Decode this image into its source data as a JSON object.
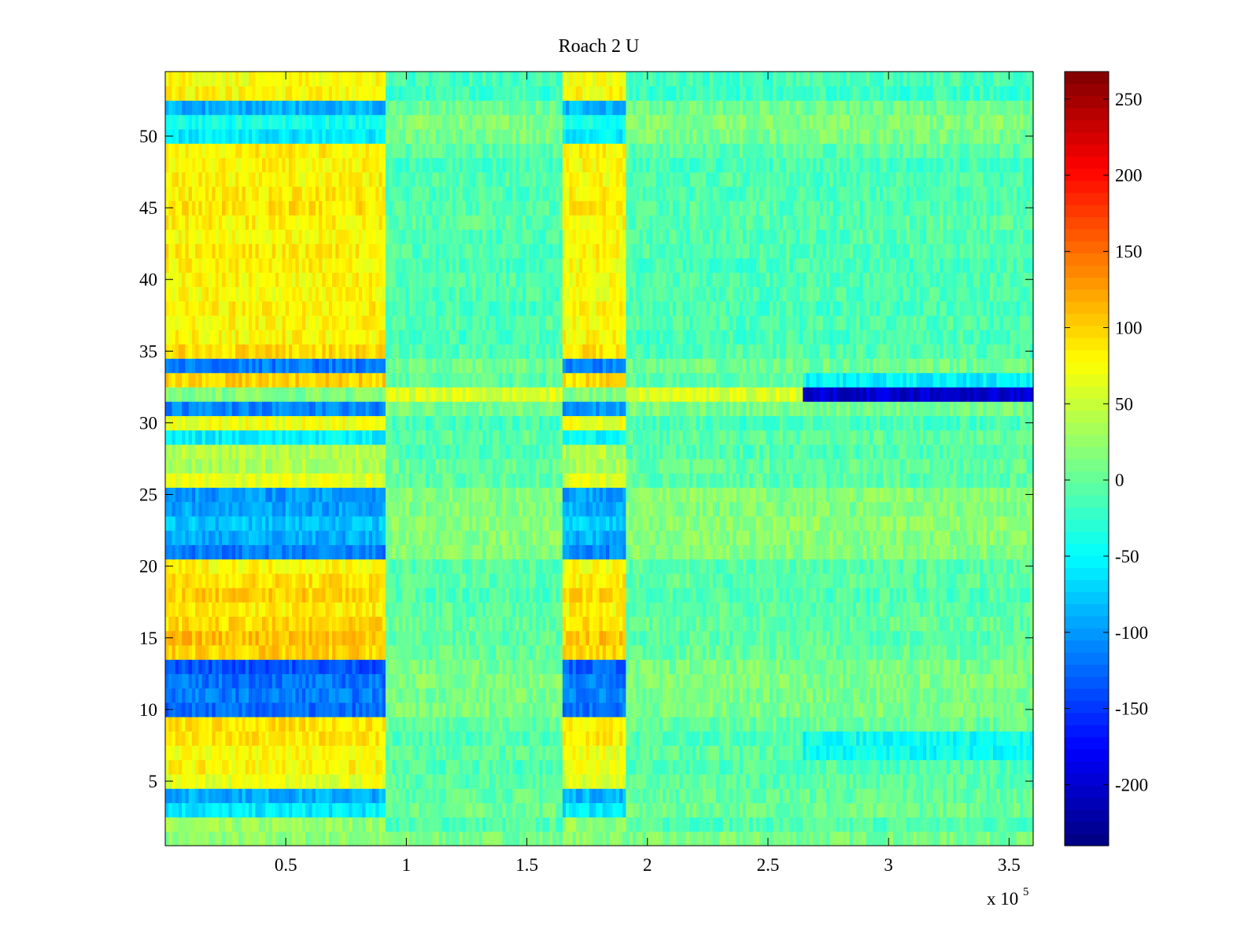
{
  "chart_data": {
    "type": "heatmap",
    "title": "Roach 2 U",
    "xlabel": "",
    "ylabel": "",
    "x_multiplier": "x 10",
    "x_multiplier_exponent": "5",
    "xlim": [
      0,
      3.6
    ],
    "ylim": [
      0.5,
      54.5
    ],
    "x_ticks": [
      0.5,
      1,
      1.5,
      2,
      2.5,
      3,
      3.5
    ],
    "x_tick_labels": [
      "0.5",
      "1",
      "1.5",
      "2",
      "2.5",
      "3",
      "3.5"
    ],
    "y_ticks": [
      5,
      10,
      15,
      20,
      25,
      30,
      35,
      40,
      45,
      50
    ],
    "y_tick_labels": [
      "5",
      "10",
      "15",
      "20",
      "25",
      "30",
      "35",
      "40",
      "45",
      "50"
    ],
    "colormap": "jet",
    "colorbar": {
      "clim": [
        -240,
        268
      ],
      "ticks": [
        250,
        200,
        150,
        100,
        50,
        0,
        -50,
        -100,
        -150,
        -200
      ],
      "tick_labels": [
        "250",
        "200",
        "150",
        "100",
        "50",
        "0",
        "-50",
        "-100",
        "-150",
        "-200"
      ]
    },
    "rows": 54,
    "segments_x": [
      0,
      0.91,
      1.65,
      1.91,
      2.64,
      3.6
    ],
    "segment_values": {
      "active": [
        [
          1,
          20
        ],
        [
          2,
          25
        ],
        [
          3,
          -60
        ],
        [
          4,
          -90
        ],
        [
          5,
          65
        ],
        [
          6,
          80
        ],
        [
          7,
          75
        ],
        [
          8,
          88
        ],
        [
          9,
          90
        ],
        [
          10,
          -125
        ],
        [
          11,
          -115
        ],
        [
          12,
          -120
        ],
        [
          13,
          -135
        ],
        [
          14,
          100
        ],
        [
          15,
          110
        ],
        [
          16,
          95
        ],
        [
          17,
          85
        ],
        [
          18,
          100
        ],
        [
          19,
          92
        ],
        [
          20,
          80
        ],
        [
          21,
          -115
        ],
        [
          22,
          -90
        ],
        [
          23,
          -80
        ],
        [
          24,
          -95
        ],
        [
          25,
          -100
        ],
        [
          26,
          65
        ],
        [
          27,
          35
        ],
        [
          28,
          40
        ],
        [
          29,
          -55
        ],
        [
          30,
          70
        ],
        [
          31,
          -110
        ],
        [
          32,
          15
        ],
        [
          33,
          100
        ],
        [
          34,
          -115
        ],
        [
          35,
          95
        ],
        [
          36,
          80
        ],
        [
          37,
          80
        ],
        [
          38,
          82
        ],
        [
          39,
          78
        ],
        [
          40,
          80
        ],
        [
          41,
          82
        ],
        [
          42,
          85
        ],
        [
          43,
          80
        ],
        [
          44,
          82
        ],
        [
          45,
          90
        ],
        [
          46,
          85
        ],
        [
          47,
          80
        ],
        [
          48,
          82
        ],
        [
          49,
          84
        ],
        [
          50,
          -60
        ],
        [
          51,
          -40
        ],
        [
          52,
          -90
        ],
        [
          53,
          80
        ],
        [
          54,
          75
        ]
      ],
      "quiet_mean": [
        [
          1,
          10
        ],
        [
          2,
          -10
        ],
        [
          3,
          5
        ],
        [
          4,
          0
        ],
        [
          5,
          -5
        ],
        [
          6,
          -10
        ],
        [
          7,
          -5
        ],
        [
          8,
          -10
        ],
        [
          9,
          0
        ],
        [
          10,
          12
        ],
        [
          11,
          10
        ],
        [
          12,
          15
        ],
        [
          13,
          10
        ],
        [
          14,
          0
        ],
        [
          15,
          -5
        ],
        [
          16,
          0
        ],
        [
          17,
          -5
        ],
        [
          18,
          -10
        ],
        [
          19,
          -5
        ],
        [
          20,
          -8
        ],
        [
          21,
          15
        ],
        [
          22,
          18
        ],
        [
          23,
          20
        ],
        [
          24,
          15
        ],
        [
          25,
          18
        ],
        [
          26,
          -5
        ],
        [
          27,
          0
        ],
        [
          28,
          -10
        ],
        [
          29,
          -5
        ],
        [
          30,
          -15
        ],
        [
          31,
          10
        ],
        [
          32,
          60
        ],
        [
          33,
          -5
        ],
        [
          34,
          5
        ],
        [
          35,
          -10
        ],
        [
          36,
          -15
        ],
        [
          37,
          -10
        ],
        [
          38,
          -15
        ],
        [
          39,
          -10
        ],
        [
          40,
          -10
        ],
        [
          41,
          -15
        ],
        [
          42,
          -10
        ],
        [
          43,
          -10
        ],
        [
          44,
          -5
        ],
        [
          45,
          -10
        ],
        [
          46,
          -12
        ],
        [
          47,
          -10
        ],
        [
          48,
          -15
        ],
        [
          49,
          -5
        ],
        [
          50,
          10
        ],
        [
          51,
          15
        ],
        [
          52,
          5
        ],
        [
          53,
          -20
        ],
        [
          54,
          -15
        ]
      ],
      "late_anomalies": [
        {
          "row": 32,
          "value": -200
        },
        {
          "row": 33,
          "value": -55
        },
        {
          "row": 7,
          "value": -45
        },
        {
          "row": 8,
          "value": -45
        }
      ]
    }
  }
}
